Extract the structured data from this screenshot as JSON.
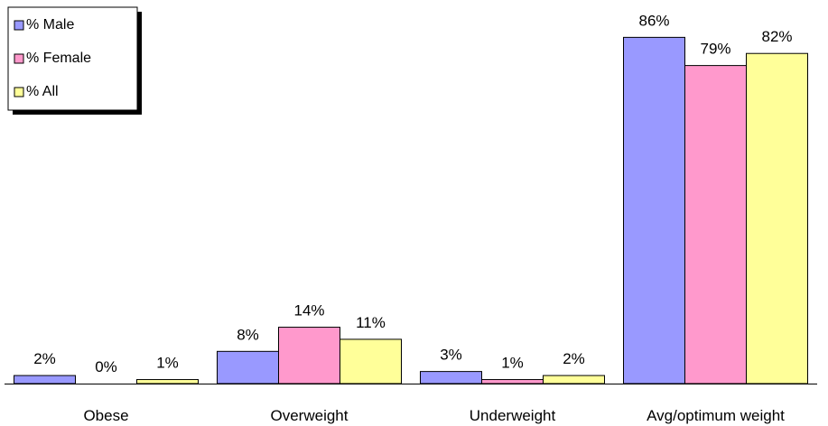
{
  "chart_data": {
    "type": "bar",
    "categories": [
      "Obese",
      "Overweight",
      "Underweight",
      "Avg/optimum weight"
    ],
    "series": [
      {
        "name": "% Male",
        "color": "#9999ff",
        "values": [
          2,
          8,
          3,
          86
        ],
        "labels": [
          "2%",
          "8%",
          "3%",
          "86%"
        ]
      },
      {
        "name": "% Female",
        "color": "#ff99cc",
        "values": [
          0,
          14,
          1,
          79
        ],
        "labels": [
          "0%",
          "14%",
          "1%",
          "79%"
        ]
      },
      {
        "name": "% All",
        "color": "#ffff99",
        "values": [
          1,
          11,
          2,
          82
        ],
        "labels": [
          "1%",
          "11%",
          "2%",
          "82%"
        ]
      }
    ],
    "ylim": [
      0,
      89
    ],
    "grid": false,
    "legend_position": "top-left"
  }
}
